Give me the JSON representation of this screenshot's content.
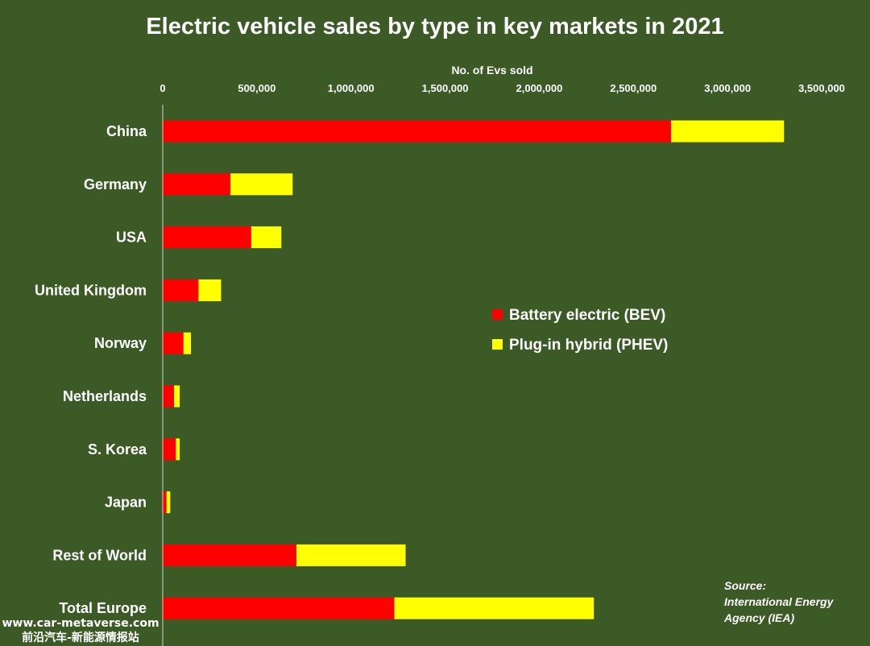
{
  "chart_data": {
    "type": "bar",
    "orientation": "horizontal",
    "stacked": true,
    "title": "Electric vehicle sales by type in key markets in 2021",
    "xlabel": "No. of Evs sold",
    "xlim": [
      0,
      3500000
    ],
    "x_ticks": [
      0,
      500000,
      1000000,
      1500000,
      2000000,
      2500000,
      3000000,
      3500000
    ],
    "x_tick_labels": [
      "0",
      "500,000",
      "1,000,000",
      "1,500,000",
      "2,000,000",
      "2,500,000",
      "3,000,000",
      "3,500,000"
    ],
    "x_axis_position": "top",
    "grid": false,
    "categories": [
      "China",
      "Germany",
      "USA",
      "United Kingdom",
      "Norway",
      "Netherlands",
      "S. Korea",
      "Japan",
      "Rest of World",
      "Total Europe"
    ],
    "series": [
      {
        "name": "Battery electric (BEV)",
        "color": "#ff0000",
        "values": [
          2700000,
          360000,
          470000,
          190000,
          110000,
          60000,
          70000,
          20000,
          710000,
          1230000
        ]
      },
      {
        "name": "Plug-in hybrid (PHEV)",
        "color": "#ffff00",
        "values": [
          600000,
          330000,
          160000,
          120000,
          40000,
          30000,
          20000,
          20000,
          580000,
          1060000
        ]
      }
    ],
    "legend_position": "center-right"
  },
  "source": {
    "label": "Source:",
    "line1": "International Energy",
    "line2": "Agency (IEA)"
  },
  "watermark": {
    "url": "www.car-metaverse.com",
    "text": "前沿汽车-新能源情报站"
  },
  "colors": {
    "background": "#3b5a26",
    "text": "#ffffff",
    "axis_line": "#cfd8c4"
  }
}
